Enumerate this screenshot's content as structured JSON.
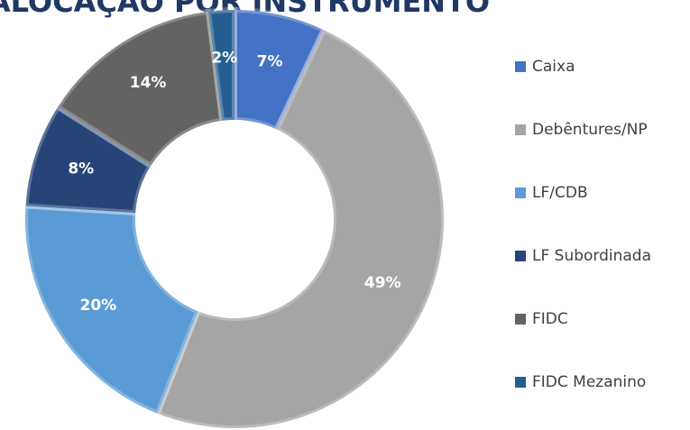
{
  "chart_data": {
    "type": "donut",
    "title": "ALOCAÇÃO POR INSTRUMENTO",
    "categories": [
      "Caixa",
      "Debêntures/NP",
      "LF/CDB",
      "LF Subordinada",
      "FIDC",
      "FIDC Mezanino"
    ],
    "values": [
      7,
      49,
      20,
      8,
      14,
      2
    ],
    "value_labels": [
      "7%",
      "49%",
      "20%",
      "8%",
      "14%",
      "2%"
    ],
    "colors": [
      "#4472c4",
      "#a5a5a5",
      "#5b9bd5",
      "#264478",
      "#636363",
      "#255e91"
    ],
    "legend": "right"
  }
}
